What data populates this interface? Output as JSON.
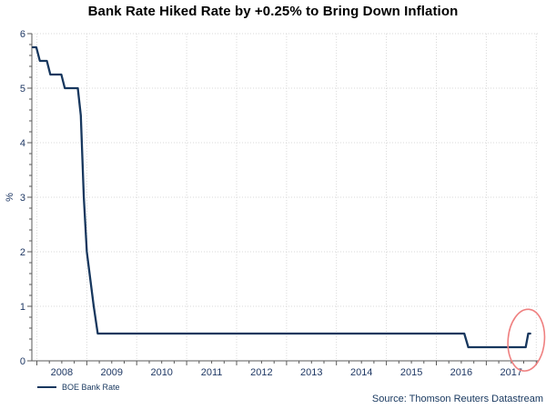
{
  "header": {
    "title": "Bank Rate Hiked Rate by +0.25% to Bring Down Inflation"
  },
  "legend": {
    "series_label": "BOE Bank Rate"
  },
  "footer": {
    "source": "Source: Thomson Reuters Datastream"
  },
  "colors": {
    "background": "#ffffff",
    "line": "#17375e",
    "grid": "#d9d9d9",
    "axis": "#595959",
    "tick_text": "#1f3864",
    "title_text": "#000000",
    "legend_text": "#17375e",
    "source_text": "#17375e",
    "annotation": "#ef8080"
  },
  "chart_data": {
    "type": "line",
    "title": "Bank Rate Hiked Rate by +0.25% to Bring Down Inflation",
    "xlabel": "",
    "ylabel": "%",
    "xlim": [
      2007.9,
      2018.05
    ],
    "ylim": [
      0,
      6
    ],
    "grid": true,
    "legend_position": "bottom-left",
    "y_major_ticks": [
      0,
      1,
      2,
      3,
      4,
      5,
      6
    ],
    "y_minor_step": 0.2,
    "x_grid_years": [
      2008,
      2009,
      2010,
      2011,
      2012,
      2013,
      2014,
      2015,
      2016,
      2017,
      2018
    ],
    "x_minor_step": 0.25,
    "x_tick_labels": [
      "2008",
      "2009",
      "2010",
      "2011",
      "2012",
      "2013",
      "2014",
      "2015",
      "2016",
      "2017"
    ],
    "series": [
      {
        "name": "BOE Bank Rate",
        "color": "#17375e",
        "points": [
          [
            2007.92,
            5.75
          ],
          [
            2007.99,
            5.75
          ],
          [
            2008.06,
            5.5
          ],
          [
            2008.2,
            5.5
          ],
          [
            2008.27,
            5.25
          ],
          [
            2008.49,
            5.25
          ],
          [
            2008.56,
            5.0
          ],
          [
            2008.82,
            5.0
          ],
          [
            2008.88,
            4.5
          ],
          [
            2008.94,
            3.0
          ],
          [
            2009.0,
            2.0
          ],
          [
            2009.07,
            1.5
          ],
          [
            2009.14,
            1.0
          ],
          [
            2009.22,
            0.5
          ],
          [
            2016.56,
            0.5
          ],
          [
            2016.64,
            0.25
          ],
          [
            2017.79,
            0.25
          ],
          [
            2017.84,
            0.5
          ],
          [
            2017.88,
            0.5
          ]
        ]
      }
    ],
    "annotations": [
      {
        "type": "ellipse",
        "x_year": 2017.8,
        "y_value": 0.38,
        "color": "#ef8080"
      }
    ]
  }
}
